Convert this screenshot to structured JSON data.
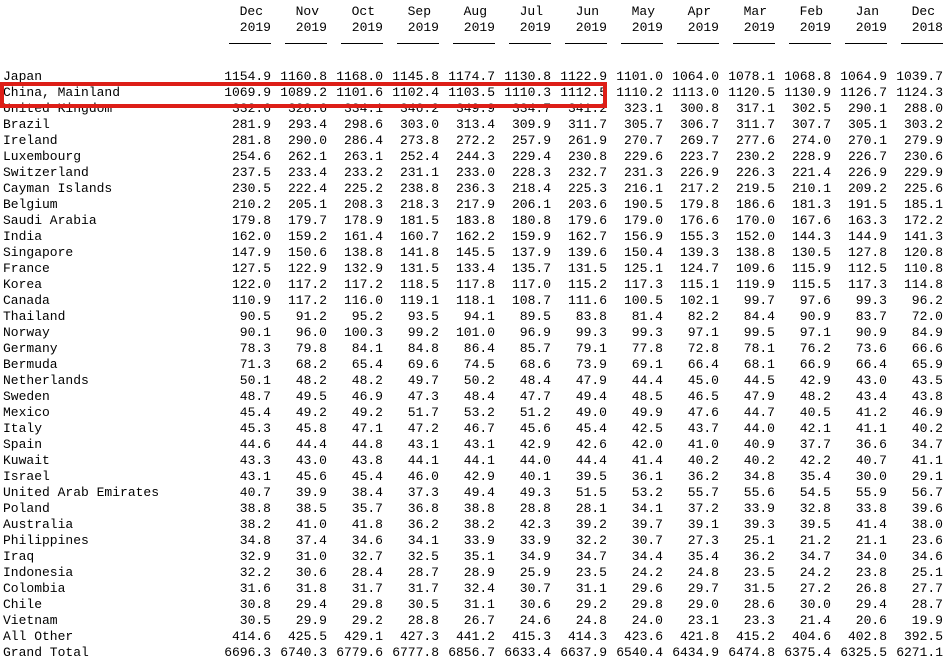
{
  "colors": {
    "background": "#ffffff",
    "text": "#000000",
    "highlight_border": "#dd1e17"
  },
  "highlight": {
    "type": "red-rectangle-annotation",
    "target_row": "China, Mainland",
    "covers_columns": [
      "Dec 2019",
      "Nov 2019",
      "Oct 2019",
      "Sep 2019",
      "Aug 2019",
      "Jul 2019",
      "Jun 2019"
    ],
    "color": "#dd1e17"
  },
  "table": {
    "columns": [
      {
        "month": "Dec",
        "year": "2019"
      },
      {
        "month": "Nov",
        "year": "2019"
      },
      {
        "month": "Oct",
        "year": "2019"
      },
      {
        "month": "Sep",
        "year": "2019"
      },
      {
        "month": "Aug",
        "year": "2019"
      },
      {
        "month": "Jul",
        "year": "2019"
      },
      {
        "month": "Jun",
        "year": "2019"
      },
      {
        "month": "May",
        "year": "2019"
      },
      {
        "month": "Apr",
        "year": "2019"
      },
      {
        "month": "Mar",
        "year": "2019"
      },
      {
        "month": "Feb",
        "year": "2019"
      },
      {
        "month": "Jan",
        "year": "2019"
      },
      {
        "month": "Dec",
        "year": "2018"
      }
    ],
    "rows": [
      {
        "label": "Japan",
        "values": [
          "1154.9",
          "1160.8",
          "1168.0",
          "1145.8",
          "1174.7",
          "1130.8",
          "1122.9",
          "1101.0",
          "1064.0",
          "1078.1",
          "1068.8",
          "1064.9",
          "1039.7"
        ]
      },
      {
        "label": "China, Mainland",
        "values": [
          "1069.9",
          "1089.2",
          "1101.6",
          "1102.4",
          "1103.5",
          "1110.3",
          "1112.5",
          "1110.2",
          "1113.0",
          "1120.5",
          "1130.9",
          "1126.7",
          "1124.3"
        ]
      },
      {
        "label": "United Kingdom",
        "values": [
          "332.6",
          "328.6",
          "334.1",
          "346.2",
          "349.9",
          "334.7",
          "341.2",
          "323.1",
          "300.8",
          "317.1",
          "302.5",
          "290.1",
          "288.0"
        ]
      },
      {
        "label": "Brazil",
        "values": [
          "281.9",
          "293.4",
          "298.6",
          "303.0",
          "313.4",
          "309.9",
          "311.7",
          "305.7",
          "306.7",
          "311.7",
          "307.7",
          "305.1",
          "303.2"
        ]
      },
      {
        "label": "Ireland",
        "values": [
          "281.8",
          "290.0",
          "286.4",
          "273.8",
          "272.2",
          "257.9",
          "261.9",
          "270.7",
          "269.7",
          "277.6",
          "274.0",
          "270.1",
          "279.9"
        ]
      },
      {
        "label": "Luxembourg",
        "values": [
          "254.6",
          "262.1",
          "263.1",
          "252.4",
          "244.3",
          "229.4",
          "230.8",
          "229.6",
          "223.7",
          "230.2",
          "228.9",
          "226.7",
          "230.6"
        ]
      },
      {
        "label": "Switzerland",
        "values": [
          "237.5",
          "233.4",
          "233.2",
          "231.1",
          "233.0",
          "228.3",
          "232.7",
          "231.3",
          "226.9",
          "226.3",
          "221.4",
          "226.9",
          "229.9"
        ]
      },
      {
        "label": "Cayman Islands",
        "values": [
          "230.5",
          "222.4",
          "225.2",
          "238.8",
          "236.3",
          "218.4",
          "225.3",
          "216.1",
          "217.2",
          "219.5",
          "210.1",
          "209.2",
          "225.6"
        ]
      },
      {
        "label": "Belgium",
        "values": [
          "210.2",
          "205.1",
          "208.3",
          "218.3",
          "217.9",
          "206.1",
          "203.6",
          "190.5",
          "179.8",
          "186.6",
          "181.3",
          "191.5",
          "185.1"
        ]
      },
      {
        "label": "Saudi Arabia",
        "values": [
          "179.8",
          "179.7",
          "178.9",
          "181.5",
          "183.8",
          "180.8",
          "179.6",
          "179.0",
          "176.6",
          "170.0",
          "167.6",
          "163.3",
          "172.2"
        ]
      },
      {
        "label": "India",
        "values": [
          "162.0",
          "159.2",
          "161.4",
          "160.7",
          "162.2",
          "159.9",
          "162.7",
          "156.9",
          "155.3",
          "152.0",
          "144.3",
          "144.9",
          "141.3"
        ]
      },
      {
        "label": "Singapore",
        "values": [
          "147.9",
          "150.6",
          "138.8",
          "141.8",
          "145.5",
          "137.9",
          "139.6",
          "150.4",
          "139.3",
          "138.8",
          "130.5",
          "127.8",
          "120.8"
        ]
      },
      {
        "label": "France",
        "values": [
          "127.5",
          "122.9",
          "132.9",
          "131.5",
          "133.4",
          "135.7",
          "131.5",
          "125.1",
          "124.7",
          "109.6",
          "115.9",
          "112.5",
          "110.8"
        ]
      },
      {
        "label": "Korea",
        "values": [
          "122.0",
          "117.2",
          "117.2",
          "118.5",
          "117.8",
          "117.0",
          "115.2",
          "117.3",
          "115.1",
          "119.9",
          "115.5",
          "117.3",
          "114.8"
        ]
      },
      {
        "label": "Canada",
        "values": [
          "110.9",
          "117.2",
          "116.0",
          "119.1",
          "118.1",
          "108.7",
          "111.6",
          "100.5",
          "102.1",
          "99.7",
          "97.6",
          "99.3",
          "96.2"
        ]
      },
      {
        "label": "Thailand",
        "values": [
          "90.5",
          "91.2",
          "95.2",
          "93.5",
          "94.1",
          "89.5",
          "83.8",
          "81.4",
          "82.2",
          "84.4",
          "90.9",
          "83.7",
          "72.0"
        ]
      },
      {
        "label": "Norway",
        "values": [
          "90.1",
          "96.0",
          "100.3",
          "99.2",
          "101.0",
          "96.9",
          "99.3",
          "99.3",
          "97.1",
          "99.5",
          "97.1",
          "90.9",
          "84.9"
        ]
      },
      {
        "label": "Germany",
        "values": [
          "78.3",
          "79.8",
          "84.1",
          "84.8",
          "86.4",
          "85.7",
          "79.1",
          "77.8",
          "72.8",
          "78.1",
          "76.2",
          "73.6",
          "66.6"
        ]
      },
      {
        "label": "Bermuda",
        "values": [
          "71.3",
          "68.2",
          "65.4",
          "69.6",
          "74.5",
          "68.6",
          "73.9",
          "69.1",
          "66.4",
          "68.1",
          "66.9",
          "66.4",
          "65.9"
        ]
      },
      {
        "label": "Netherlands",
        "values": [
          "50.1",
          "48.2",
          "48.2",
          "49.7",
          "50.2",
          "48.4",
          "47.9",
          "44.4",
          "45.0",
          "44.5",
          "42.9",
          "43.0",
          "43.5"
        ]
      },
      {
        "label": "Sweden",
        "values": [
          "48.7",
          "49.5",
          "46.9",
          "47.3",
          "48.4",
          "47.7",
          "49.4",
          "48.5",
          "46.5",
          "47.9",
          "48.2",
          "43.4",
          "43.8"
        ]
      },
      {
        "label": "Mexico",
        "values": [
          "45.4",
          "49.2",
          "49.2",
          "51.7",
          "53.2",
          "51.2",
          "49.0",
          "49.9",
          "47.6",
          "44.7",
          "40.5",
          "41.2",
          "46.9"
        ]
      },
      {
        "label": "Italy",
        "values": [
          "45.3",
          "45.8",
          "47.1",
          "47.2",
          "46.7",
          "45.6",
          "45.4",
          "42.5",
          "43.7",
          "44.0",
          "42.1",
          "41.1",
          "40.2"
        ]
      },
      {
        "label": "Spain",
        "values": [
          "44.6",
          "44.4",
          "44.8",
          "43.1",
          "43.1",
          "42.9",
          "42.6",
          "42.0",
          "41.0",
          "40.9",
          "37.7",
          "36.6",
          "34.7"
        ]
      },
      {
        "label": "Kuwait",
        "values": [
          "43.3",
          "43.0",
          "43.8",
          "44.1",
          "44.1",
          "44.0",
          "44.4",
          "41.4",
          "40.2",
          "40.2",
          "42.2",
          "40.7",
          "41.1"
        ]
      },
      {
        "label": "Israel",
        "values": [
          "43.1",
          "45.6",
          "45.4",
          "46.0",
          "42.9",
          "40.1",
          "39.5",
          "36.1",
          "36.2",
          "34.8",
          "35.4",
          "30.0",
          "29.1"
        ]
      },
      {
        "label": "United Arab Emirates",
        "values": [
          "40.7",
          "39.9",
          "38.4",
          "37.3",
          "49.4",
          "49.3",
          "51.5",
          "53.2",
          "55.7",
          "55.6",
          "54.5",
          "55.9",
          "56.7"
        ]
      },
      {
        "label": "Poland",
        "values": [
          "38.8",
          "38.5",
          "35.7",
          "36.8",
          "38.8",
          "28.8",
          "28.1",
          "34.1",
          "37.2",
          "33.9",
          "32.8",
          "33.8",
          "39.6"
        ]
      },
      {
        "label": "Australia",
        "values": [
          "38.2",
          "41.0",
          "41.8",
          "36.2",
          "38.2",
          "42.3",
          "39.2",
          "39.7",
          "39.1",
          "39.3",
          "39.5",
          "41.4",
          "38.0"
        ]
      },
      {
        "label": "Philippines",
        "values": [
          "34.8",
          "37.4",
          "34.6",
          "34.1",
          "33.9",
          "33.9",
          "32.2",
          "30.7",
          "27.3",
          "25.1",
          "21.2",
          "21.1",
          "23.6"
        ]
      },
      {
        "label": "Iraq",
        "values": [
          "32.9",
          "31.0",
          "32.7",
          "32.5",
          "35.1",
          "34.9",
          "34.7",
          "34.4",
          "35.4",
          "36.2",
          "34.7",
          "34.0",
          "34.6"
        ]
      },
      {
        "label": "Indonesia",
        "values": [
          "32.2",
          "30.6",
          "28.4",
          "28.7",
          "28.9",
          "25.9",
          "23.5",
          "24.2",
          "24.8",
          "23.5",
          "24.2",
          "23.8",
          "25.1"
        ]
      },
      {
        "label": "Colombia",
        "values": [
          "31.6",
          "31.8",
          "31.7",
          "31.7",
          "32.4",
          "30.7",
          "31.1",
          "29.6",
          "29.7",
          "31.5",
          "27.2",
          "26.8",
          "27.7"
        ]
      },
      {
        "label": "Chile",
        "values": [
          "30.8",
          "29.4",
          "29.8",
          "30.5",
          "31.1",
          "30.6",
          "29.2",
          "29.8",
          "29.0",
          "28.6",
          "30.0",
          "29.4",
          "28.7"
        ]
      },
      {
        "label": "Vietnam",
        "values": [
          "30.5",
          "29.9",
          "29.2",
          "28.8",
          "26.7",
          "24.6",
          "24.8",
          "24.0",
          "23.1",
          "23.3",
          "21.4",
          "20.6",
          "19.9"
        ]
      },
      {
        "label": "All Other",
        "values": [
          "414.6",
          "425.5",
          "429.1",
          "427.3",
          "441.2",
          "415.3",
          "414.3",
          "423.6",
          "421.8",
          "415.2",
          "404.6",
          "402.8",
          "392.5"
        ]
      },
      {
        "label": "Grand Total",
        "values": [
          "6696.3",
          "6740.3",
          "6779.6",
          "6777.8",
          "6856.7",
          "6633.4",
          "6637.9",
          "6540.4",
          "6434.9",
          "6474.8",
          "6375.4",
          "6325.5",
          "6271.1"
        ]
      }
    ]
  }
}
